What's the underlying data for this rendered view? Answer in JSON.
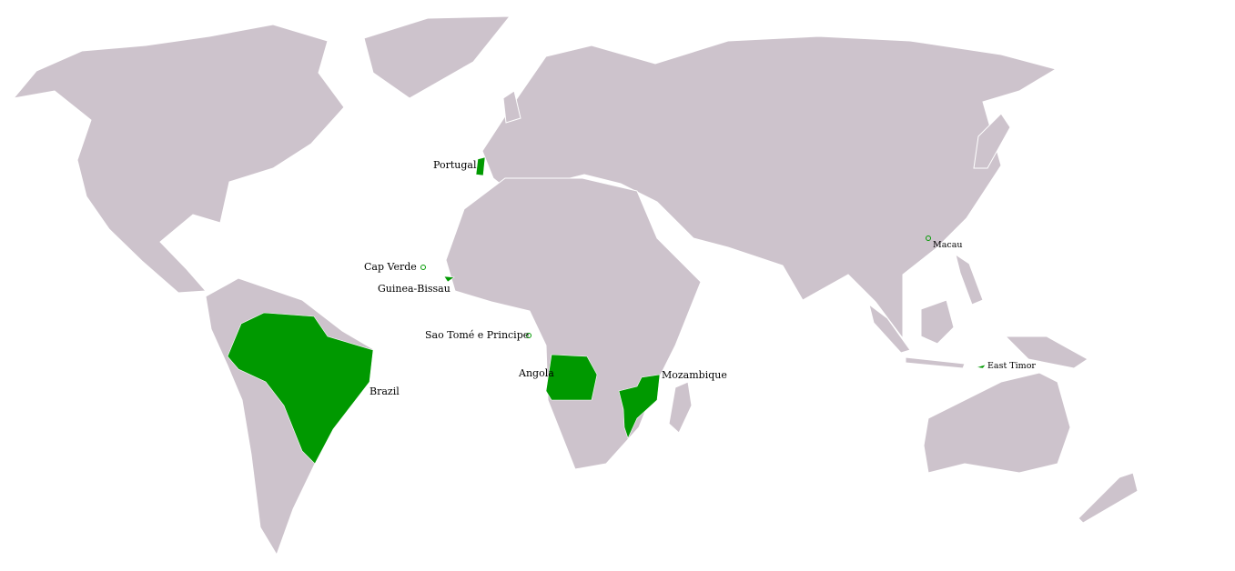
{
  "colors": {
    "land": "#cdc3cc",
    "highlight": "#009900",
    "border": "#ffffff",
    "sea": "#ffffff"
  },
  "highlighted_countries": [
    {
      "key": "portugal",
      "label": "Portugal"
    },
    {
      "key": "brazil",
      "label": "Brazil"
    },
    {
      "key": "angola",
      "label": "Angola"
    },
    {
      "key": "mozambique",
      "label": "Mozambique"
    },
    {
      "key": "guinea_bissau",
      "label": "Guinea-Bissau"
    },
    {
      "key": "cap_verde",
      "label": "Cap Verde",
      "marker": "circle"
    },
    {
      "key": "sao_tome",
      "label": "Sao Tomé e Principe",
      "marker": "circle"
    },
    {
      "key": "macau",
      "label": "Macau",
      "marker": "circle"
    },
    {
      "key": "east_timor",
      "label": "East Timor"
    }
  ]
}
